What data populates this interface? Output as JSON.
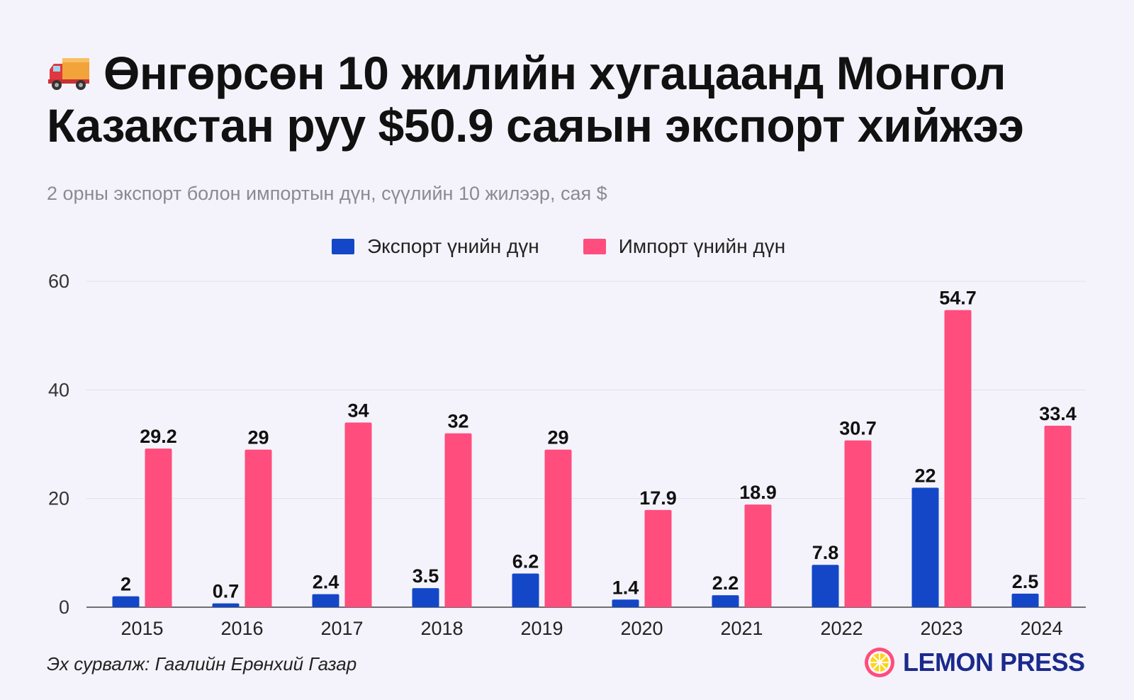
{
  "header": {
    "title": "Өнгөрсөн 10 жилийн хугацаанд Монгол Казакстан руу $50.9 саяын экспорт хийжээ",
    "title_icon": "delivery-truck-icon",
    "subtitle": "2 орны экспорт болон импортын дүн, сүүлийн 10 жилээр, сая $"
  },
  "footer": {
    "source": "Эх сурвалж: Гаалийн Ерөнхий Газар",
    "brand": "LEMON PRESS",
    "brand_icon": "lemon-slice-icon"
  },
  "colors": {
    "export": "#1447c8",
    "import": "#ff4d7d",
    "brand": "#1b2a8c",
    "background": "#f4f3fb"
  },
  "chart_data": {
    "type": "bar",
    "categories": [
      "2015",
      "2016",
      "2017",
      "2018",
      "2019",
      "2020",
      "2021",
      "2022",
      "2023",
      "2024"
    ],
    "series": [
      {
        "name": "Экспорт үнийн дүн",
        "values": [
          2,
          0.7,
          2.4,
          3.5,
          6.2,
          1.4,
          2.2,
          7.8,
          22,
          2.5
        ]
      },
      {
        "name": "Импорт үнийн дүн",
        "values": [
          29.2,
          29,
          34,
          32,
          29,
          17.9,
          18.9,
          30.7,
          54.7,
          33.4
        ]
      }
    ],
    "yticks": [
      0,
      20,
      40,
      60
    ],
    "ylim": [
      0,
      60
    ],
    "grid": true,
    "legend": "top-center",
    "data_labels": true
  }
}
